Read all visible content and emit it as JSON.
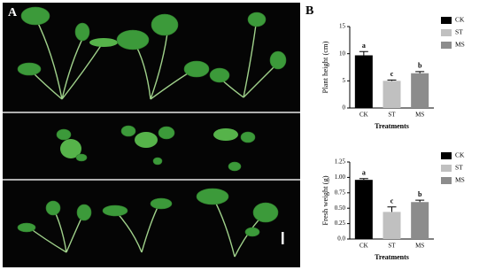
{
  "figure": {
    "panel_a_label": "A",
    "panel_b_label": "B"
  },
  "chart_data": [
    {
      "type": "bar",
      "y_label": "Plant height (cm)",
      "x_label": "Treatments",
      "categories": [
        "CK",
        "ST",
        "MS"
      ],
      "values": [
        9.7,
        5.0,
        6.4
      ],
      "errors": [
        0.7,
        0.15,
        0.3
      ],
      "annotations": [
        "a",
        "c",
        "b"
      ],
      "colors": [
        "#000000",
        "#c0c0c0",
        "#8c8c8c"
      ],
      "ylim": [
        0,
        15
      ],
      "yticks": [
        0,
        5,
        10,
        15
      ],
      "grid": false,
      "legend": "top-right"
    },
    {
      "type": "bar",
      "y_label": "Fresh weight (g)",
      "x_label": "Treatments",
      "categories": [
        "CK",
        "ST",
        "MS"
      ],
      "values": [
        0.96,
        0.44,
        0.6
      ],
      "errors": [
        0.02,
        0.08,
        0.03
      ],
      "annotations": [
        "a",
        "c",
        "b"
      ],
      "colors": [
        "#000000",
        "#c0c0c0",
        "#8c8c8c"
      ],
      "ylim": [
        0,
        1.25
      ],
      "yticks": [
        {
          "value": 0,
          "label": "0.0"
        },
        {
          "value": 0.25,
          "label": "0.25"
        },
        {
          "value": 0.5,
          "label": "0.50"
        },
        {
          "value": 0.75,
          "label": "0.75"
        },
        {
          "value": 1,
          "label": "1.00"
        },
        {
          "value": 1.25,
          "label": "1.25"
        }
      ],
      "grid": false,
      "legend": "top-right"
    }
  ]
}
